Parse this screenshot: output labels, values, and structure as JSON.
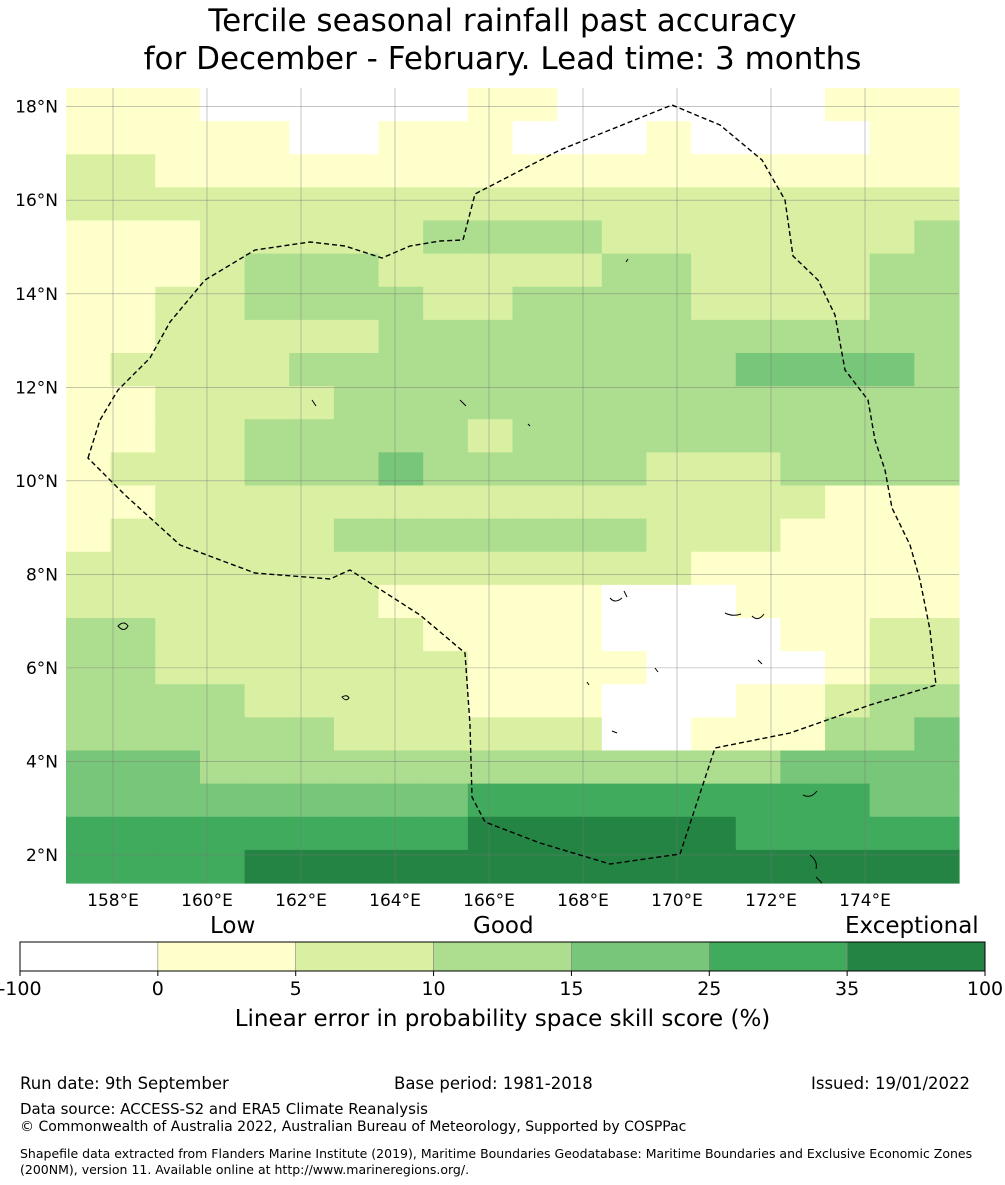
{
  "title": {
    "line1": "Tercile seasonal rainfall past accuracy",
    "line2": "for December - February. Lead time: 3 months"
  },
  "map": {
    "lat_ticks": [
      "18°N",
      "16°N",
      "14°N",
      "12°N",
      "10°N",
      "8°N",
      "6°N",
      "4°N",
      "2°N"
    ],
    "lon_ticks": [
      "158°E",
      "160°E",
      "162°E",
      "164°E",
      "166°E",
      "168°E",
      "170°E",
      "172°E",
      "174°E"
    ],
    "lat_values": [
      18,
      16,
      14,
      12,
      10,
      8,
      6,
      4,
      2
    ],
    "lon_values": [
      158,
      160,
      162,
      164,
      166,
      168,
      170,
      172,
      174
    ],
    "lon_range": [
      157,
      176
    ],
    "lat_range": [
      1.4,
      18.4
    ],
    "cell_deg": 0.55,
    "grid_rows_north_to_south": [
      "11100000011000000111",
      "11111001110001000011",
      "22111111111111111111",
      "22222222222222222222",
      "11122222333322222223",
      "11123332222233222233",
      "11223333223333222233",
      "11222223333333333333",
      "12222333333333344443",
      "11222233333333333333",
      "11223333323333333333",
      "12223334333332223333",
      "11222222222222222111",
      "12222233333332221111",
      "22222222222222111111",
      "22222221111100011111",
      "33222222111100001122",
      "33222222211110000122",
      "33332222211100011233",
      "33333322222200111334",
      "44433333333333334444",
      "44444444455555555544",
      "55555555566666655555",
      "55556666666666666666"
    ],
    "cell_colors": {
      "-100_to_0": "#ffffff",
      "0_to_5": "#ffffcc",
      "5_to_10": "#d9f0a3",
      "10_to_15": "#addd8e",
      "15_to_25": "#78c679",
      "25_to_35": "#41ab5d",
      "35_to_100": "#238443"
    }
  },
  "colorbar": {
    "words": {
      "low": "Low",
      "good": "Good",
      "exceptional": "Exceptional"
    },
    "ticks": [
      "-100",
      "0",
      "5",
      "10",
      "15",
      "25",
      "35",
      "100"
    ],
    "colors": [
      "#ffffff",
      "#ffffcc",
      "#d9f0a3",
      "#addd8e",
      "#78c679",
      "#41ab5d",
      "#238443"
    ],
    "label": "Linear error in probability space skill score (%)"
  },
  "footer": {
    "run_date": "Run date: 9th September",
    "base_period": "Base period: 1981-2018",
    "issued": "Issued: 19/01/2022",
    "data_source": "Data source: ACCESS-S2 and ERA5 Climate Reanalysis",
    "copyright": "© Commonwealth of Australia 2022, Australian Bureau of Meteorology, Supported by COSPPac",
    "shapefile": "Shapefile data extracted from Flanders Marine Institute (2019), Maritime Boundaries Geodatabase: Maritime Boundaries and Exclusive Economic Zones (200NM), version 11. Available online at http://www.marineregions.org/."
  }
}
